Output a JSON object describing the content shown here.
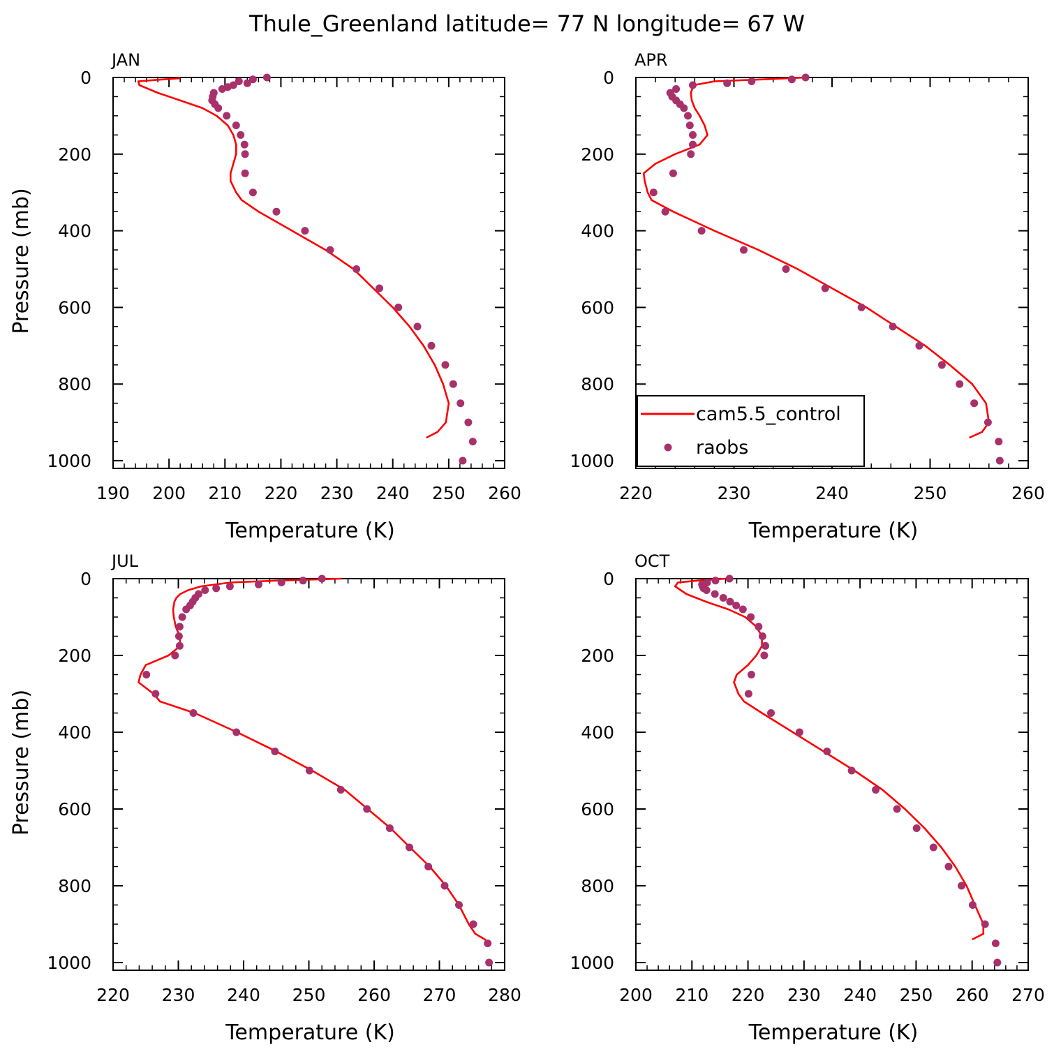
{
  "figure_title": "Thule_Greenland  latitude= 77 N longitude= 67 W",
  "colors": {
    "model": "#ff0000",
    "obs": "#a8316b",
    "axis": "#000000"
  },
  "legend": {
    "model_label": "cam5.5_control",
    "obs_label": "raobs",
    "placement": "bottom-left of APR panel"
  },
  "chart_data": [
    {
      "type": "line+scatter",
      "panel": "JAN",
      "xlabel": "Temperature (K)",
      "ylabel": "Pressure (mb)",
      "xlim": [
        190,
        260
      ],
      "xticks": [
        190,
        200,
        210,
        220,
        230,
        240,
        250,
        260
      ],
      "xtick_labels": [
        "190",
        "200",
        "210",
        "220",
        "230",
        "240",
        "250",
        "260"
      ],
      "ylim": [
        1020,
        0
      ],
      "yticks": [
        0,
        200,
        400,
        600,
        800,
        1000
      ],
      "ytick_labels": [
        "0",
        "200",
        "400",
        "600",
        "800",
        "1000"
      ],
      "model": {
        "name": "cam5.5_control",
        "p": [
          2,
          6,
          10,
          20,
          40,
          60,
          80,
          100,
          125,
          150,
          175,
          200,
          225,
          250,
          270,
          300,
          320,
          350,
          400,
          450,
          500,
          550,
          600,
          650,
          700,
          750,
          800,
          850,
          900,
          925,
          940
        ],
        "t": [
          202,
          198,
          194.5,
          194.7,
          198,
          202,
          206,
          208.5,
          210.5,
          211.5,
          212,
          212,
          211.5,
          211,
          211,
          212,
          213,
          216,
          222,
          228,
          233,
          236.5,
          240,
          243,
          245.5,
          247.5,
          249,
          250,
          249.5,
          248,
          246
        ]
      },
      "obs": {
        "name": "raobs",
        "p": [
          0,
          5,
          10,
          15,
          20,
          25,
          30,
          40,
          50,
          60,
          70,
          80,
          100,
          125,
          150,
          175,
          200,
          250,
          300,
          350,
          400,
          450,
          500,
          550,
          600,
          650,
          700,
          750,
          800,
          850,
          900,
          950,
          1000
        ],
        "t": [
          217.5,
          215,
          212.5,
          214,
          211.5,
          210.5,
          209.5,
          208,
          207.8,
          207.7,
          208.2,
          208.8,
          210.3,
          212,
          212.8,
          213.5,
          213.6,
          213.6,
          215,
          219.2,
          224.3,
          228.8,
          233.5,
          237.6,
          241,
          244.4,
          246.9,
          249.4,
          250.8,
          252.1,
          253.5,
          254.3,
          252.5
        ]
      }
    },
    {
      "type": "line+scatter",
      "panel": "APR",
      "xlabel": "Temperature (K)",
      "ylabel": "",
      "xlim": [
        220,
        260
      ],
      "xticks": [
        220,
        230,
        240,
        250,
        260
      ],
      "xtick_labels": [
        "220",
        "230",
        "240",
        "250",
        "260"
      ],
      "ylim": [
        1020,
        0
      ],
      "yticks": [
        0,
        200,
        400,
        600,
        800,
        1000
      ],
      "ytick_labels": [
        "0",
        "200",
        "400",
        "600",
        "800",
        "1000"
      ],
      "model": {
        "name": "cam5.5_control",
        "p": [
          0,
          5,
          10,
          20,
          40,
          60,
          80,
          100,
          125,
          150,
          175,
          200,
          225,
          250,
          270,
          300,
          320,
          350,
          400,
          450,
          500,
          550,
          600,
          650,
          700,
          750,
          800,
          850,
          900,
          925,
          940
        ],
        "t": [
          237.3,
          233,
          228,
          225.9,
          225.6,
          225.7,
          226,
          226.5,
          227,
          227.3,
          226.5,
          224,
          222,
          220.8,
          220.9,
          221.2,
          221.6,
          223.8,
          228,
          232.5,
          236.5,
          240,
          243.5,
          246.5,
          249.5,
          252,
          254.3,
          255.7,
          256,
          255.3,
          254
        ]
      },
      "obs": {
        "name": "raobs",
        "p": [
          0,
          5,
          10,
          15,
          20,
          30,
          40,
          50,
          60,
          70,
          80,
          100,
          125,
          150,
          175,
          200,
          250,
          300,
          350,
          400,
          450,
          500,
          550,
          600,
          650,
          700,
          750,
          800,
          850,
          900,
          950,
          1000
        ],
        "t": [
          237.3,
          235.9,
          231.8,
          229.3,
          225.8,
          224.1,
          223.5,
          223.7,
          224.1,
          224.5,
          224.9,
          225.3,
          225.5,
          225.8,
          225.8,
          225.6,
          223.8,
          221.8,
          223.0,
          226.7,
          231.0,
          235.3,
          239.3,
          243.0,
          246.2,
          248.9,
          251.2,
          253.0,
          254.5,
          255.9,
          257.0,
          257.1
        ]
      }
    },
    {
      "type": "line+scatter",
      "panel": "JUL",
      "xlabel": "Temperature (K)",
      "ylabel": "Pressure (mb)",
      "xlim": [
        220,
        280
      ],
      "xticks": [
        220,
        230,
        240,
        250,
        260,
        270,
        280
      ],
      "xtick_labels": [
        "220",
        "230",
        "240",
        "250",
        "260",
        "270",
        "280"
      ],
      "ylim": [
        1020,
        0
      ],
      "yticks": [
        0,
        200,
        400,
        600,
        800,
        1000
      ],
      "ytick_labels": [
        "0",
        "200",
        "400",
        "600",
        "800",
        "1000"
      ],
      "model": {
        "name": "cam5.5_control",
        "p": [
          0,
          5,
          10,
          20,
          30,
          40,
          50,
          60,
          80,
          100,
          125,
          150,
          175,
          200,
          225,
          250,
          270,
          300,
          320,
          350,
          400,
          450,
          500,
          550,
          600,
          650,
          700,
          750,
          800,
          850,
          900,
          925,
          940,
          950
        ],
        "t": [
          255,
          245,
          238,
          233.5,
          231.5,
          230.3,
          229.7,
          229.4,
          229.2,
          229.3,
          229.6,
          230.2,
          230.3,
          228.5,
          225,
          224.2,
          223.9,
          226.2,
          227.2,
          232.5,
          239,
          245,
          250.5,
          255.5,
          259,
          262.5,
          265.5,
          268.5,
          271,
          273,
          274.5,
          275.5,
          277,
          277.5
        ]
      },
      "obs": {
        "name": "raobs",
        "p": [
          0,
          5,
          10,
          15,
          20,
          25,
          30,
          40,
          50,
          60,
          70,
          80,
          100,
          125,
          150,
          175,
          200,
          250,
          300,
          350,
          400,
          450,
          500,
          550,
          600,
          650,
          700,
          750,
          800,
          850,
          900,
          950,
          1000
        ],
        "t": [
          252,
          249.1,
          245.8,
          242.3,
          237.9,
          235.8,
          234.1,
          233.1,
          232.6,
          232.2,
          231.8,
          231.2,
          230.6,
          230.2,
          230.1,
          230.2,
          229.5,
          225.1,
          226.5,
          232.3,
          238.9,
          244.8,
          250.1,
          254.9,
          258.9,
          262.4,
          265.4,
          268.3,
          270.8,
          273.0,
          275.2,
          277.4,
          277.6
        ]
      }
    },
    {
      "type": "line+scatter",
      "panel": "OCT",
      "xlabel": "Temperature (K)",
      "ylabel": "",
      "xlim": [
        200,
        270
      ],
      "xticks": [
        200,
        210,
        220,
        230,
        240,
        250,
        260,
        270
      ],
      "xtick_labels": [
        "200",
        "210",
        "220",
        "230",
        "240",
        "250",
        "260",
        "270"
      ],
      "ylim": [
        1020,
        0
      ],
      "yticks": [
        0,
        200,
        400,
        600,
        800,
        1000
      ],
      "ytick_labels": [
        "0",
        "200",
        "400",
        "600",
        "800",
        "1000"
      ],
      "model": {
        "name": "cam5.5_control",
        "p": [
          0,
          5,
          10,
          20,
          40,
          60,
          80,
          100,
          125,
          150,
          175,
          200,
          225,
          250,
          270,
          300,
          320,
          350,
          400,
          450,
          500,
          550,
          600,
          650,
          700,
          750,
          800,
          850,
          900,
          925,
          940
        ],
        "t": [
          216,
          211,
          207.5,
          207,
          209,
          212.5,
          216.5,
          219.5,
          221.5,
          222.5,
          222.5,
          221.5,
          220,
          218,
          217.5,
          218.3,
          219.3,
          222.5,
          228,
          233.5,
          239,
          244,
          248,
          251.5,
          254.5,
          257,
          259,
          260.5,
          262,
          262,
          260
        ]
      },
      "obs": {
        "name": "raobs",
        "p": [
          0,
          5,
          10,
          15,
          20,
          25,
          30,
          40,
          50,
          60,
          70,
          80,
          100,
          125,
          150,
          175,
          200,
          250,
          300,
          350,
          400,
          450,
          500,
          550,
          600,
          650,
          700,
          750,
          800,
          850,
          900,
          950,
          1000
        ],
        "t": [
          216.7,
          214.2,
          212.7,
          211.8,
          211.9,
          212.1,
          212.6,
          214.1,
          215.6,
          216.8,
          217.9,
          219.1,
          220.5,
          221.9,
          222.6,
          223.1,
          222.9,
          220.6,
          220.1,
          224.1,
          229.2,
          234.1,
          238.5,
          242.8,
          246.6,
          250.1,
          253.1,
          255.8,
          258.1,
          260.1,
          262.3,
          264.2,
          264.5
        ]
      }
    }
  ]
}
